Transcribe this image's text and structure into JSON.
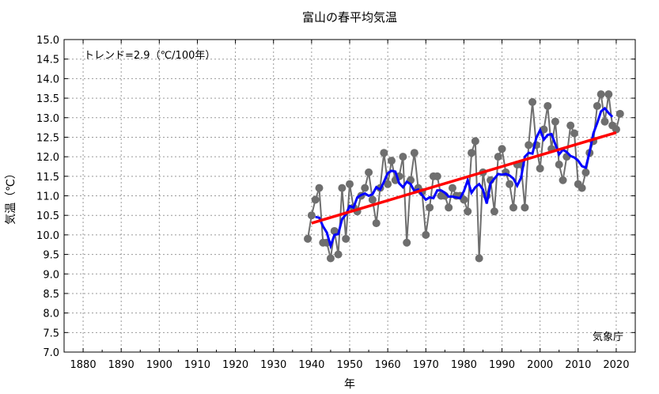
{
  "chart_data": {
    "type": "line",
    "title": "富山の春平均気温",
    "xlabel": "年",
    "ylabel": "気温（℃）",
    "xlim": [
      1875,
      2025
    ],
    "ylim": [
      7.0,
      15.0
    ],
    "xticks": [
      1880,
      1890,
      1900,
      1910,
      1920,
      1930,
      1940,
      1950,
      1960,
      1970,
      1980,
      1990,
      2000,
      2010,
      2020
    ],
    "yticks": [
      "7.0",
      "7.5",
      "8.0",
      "8.5",
      "9.0",
      "9.5",
      "10.0",
      "10.5",
      "11.0",
      "11.5",
      "12.0",
      "12.5",
      "13.0",
      "13.5",
      "14.0",
      "14.5",
      "15.0"
    ],
    "grid": true,
    "annotation": "トレンド=2.9（℃/100年）",
    "credit": "気象庁",
    "colors": {
      "annual": "#6e6e6e",
      "moving_average": "#0000ff",
      "trend": "#ff0000"
    },
    "x_start": 1939,
    "values": [
      9.9,
      10.5,
      10.9,
      11.2,
      9.8,
      9.8,
      9.4,
      10.1,
      9.5,
      11.2,
      9.9,
      11.3,
      10.7,
      10.6,
      11.0,
      11.2,
      11.6,
      10.9,
      10.3,
      11.2,
      12.1,
      11.3,
      11.9,
      11.4,
      11.5,
      12.0,
      9.8,
      11.4,
      12.1,
      11.2,
      11.1,
      10.0,
      10.7,
      11.5,
      11.5,
      11.0,
      11.0,
      10.7,
      11.2,
      11.0,
      11.0,
      10.9,
      10.6,
      12.1,
      12.4,
      9.4,
      11.6,
      11.0,
      11.4,
      10.6,
      12.0,
      12.2,
      11.6,
      11.3,
      10.7,
      11.8,
      11.8,
      10.7,
      12.3,
      13.4,
      12.3,
      11.7,
      12.7,
      13.3,
      12.2,
      12.9,
      11.8,
      11.4,
      12.0,
      12.8,
      12.6,
      11.3,
      11.2,
      11.6,
      12.1,
      12.4,
      13.3,
      13.6,
      12.9,
      13.6,
      12.8,
      12.7,
      13.1
    ],
    "moving_average_window": 5,
    "trend": {
      "start": [
        1940,
        10.3
      ],
      "end": [
        2020,
        12.62
      ]
    }
  }
}
